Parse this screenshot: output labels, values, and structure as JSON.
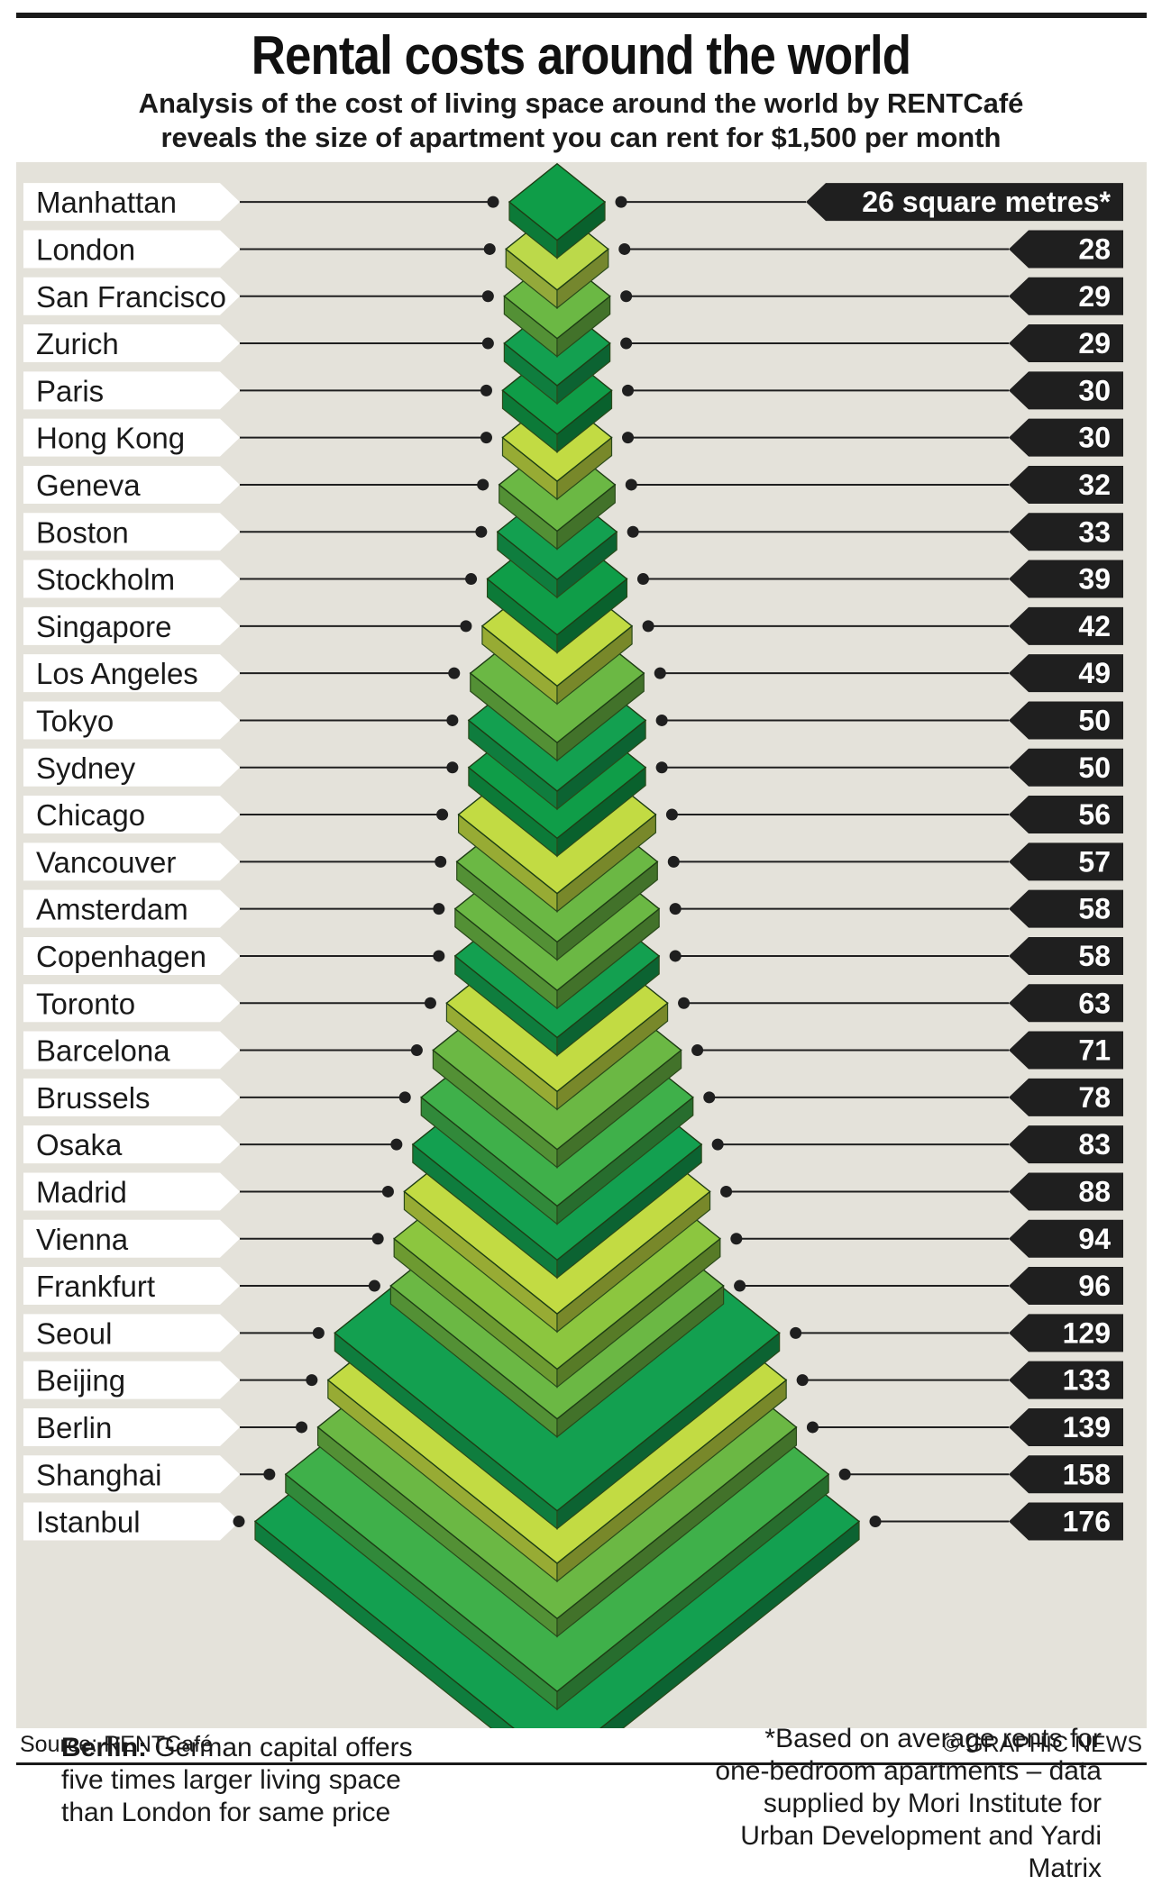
{
  "title": "Rental costs around the world",
  "subtitle_line1": "Analysis of the cost of living space around the world by RENTCafé",
  "subtitle_line2": "reveals the size of apartment you can rent for $1,500 per month",
  "chart_data": {
    "type": "bar",
    "categories": [
      "Manhattan",
      "London",
      "San Francisco",
      "Zurich",
      "Paris",
      "Hong Kong",
      "Geneva",
      "Boston",
      "Stockholm",
      "Singapore",
      "Los Angeles",
      "Tokyo",
      "Sydney",
      "Chicago",
      "Vancouver",
      "Amsterdam",
      "Copenhagen",
      "Toronto",
      "Barcelona",
      "Brussels",
      "Osaka",
      "Madrid",
      "Vienna",
      "Frankfurt",
      "Seoul",
      "Beijing",
      "Berlin",
      "Shanghai",
      "Istanbul"
    ],
    "values": [
      26,
      28,
      29,
      29,
      30,
      30,
      32,
      33,
      39,
      42,
      49,
      50,
      50,
      56,
      57,
      58,
      58,
      63,
      71,
      78,
      83,
      88,
      94,
      96,
      129,
      133,
      139,
      158,
      176
    ],
    "value_labels": [
      "26 square metres*",
      "28",
      "29",
      "29",
      "30",
      "30",
      "32",
      "33",
      "39",
      "42",
      "49",
      "50",
      "50",
      "56",
      "57",
      "58",
      "58",
      "63",
      "71",
      "78",
      "83",
      "88",
      "94",
      "96",
      "129",
      "133",
      "139",
      "158",
      "176"
    ],
    "unit": "square metres",
    "colors": [
      "#0f9d48",
      "#bcd94a",
      "#6bb844",
      "#13a050",
      "#0f9d48",
      "#c2db43",
      "#6bb844",
      "#13a050",
      "#0f9d48",
      "#c2db43",
      "#6bb844",
      "#13a050",
      "#0f9d48",
      "#c2db43",
      "#6bb844",
      "#6bb844",
      "#13a050",
      "#c2db43",
      "#6bb844",
      "#3fb04a",
      "#13a050",
      "#c2db43",
      "#8cc63f",
      "#6bb844",
      "#13a050",
      "#c2db43",
      "#6bb844",
      "#3fb04a",
      "#13a050"
    ]
  },
  "berlin_note_bold": "Berlin:",
  "berlin_note_text": " German capital offers five times larger living space than London for same price",
  "footnote": "*Based on average rents for one-bedroom apartments – data supplied by Mori Institute for Urban Development and Yardi Matrix",
  "source": "Source: RENTCafé",
  "credit": "© GRAPHIC NEWS"
}
